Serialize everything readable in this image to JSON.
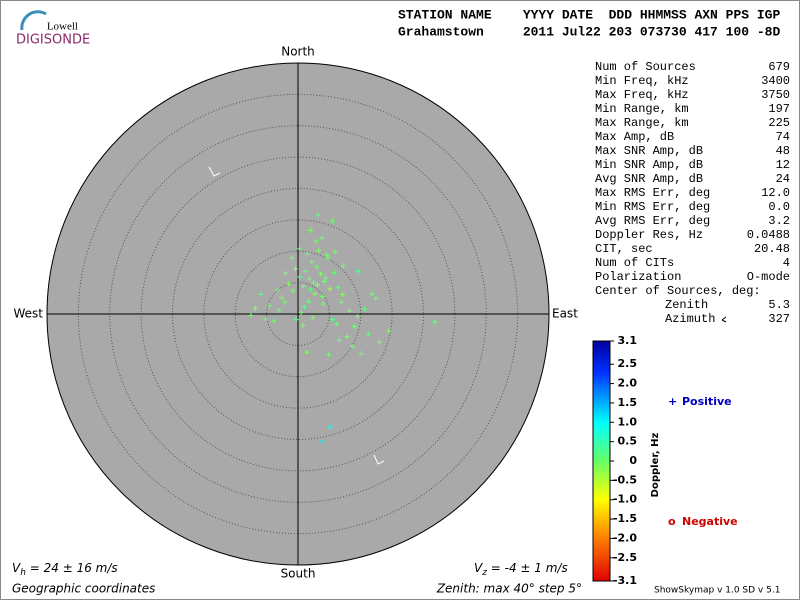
{
  "logo": {
    "top": "Lowell",
    "bottom": "DIGISONDE"
  },
  "header": {
    "line1": "STATION NAME    YYYY DATE  DDD HHMMSS AXN PPS IGP",
    "line2": "Grahamstown     2011 Jul22 203 073730 417 100 -8D"
  },
  "stats": {
    "rows": [
      {
        "label": "Num of Sources",
        "value": "679"
      },
      {
        "label": "Min Freq, kHz",
        "value": "3400"
      },
      {
        "label": "Max Freq, kHz",
        "value": "3750"
      },
      {
        "label": "Min Range, km",
        "value": "197"
      },
      {
        "label": "Max Range, km",
        "value": "225"
      },
      {
        "label": "Max Amp, dB",
        "value": "74"
      },
      {
        "label": "Max SNR Amp, dB",
        "value": "48"
      },
      {
        "label": "Min SNR Amp, dB",
        "value": "12"
      },
      {
        "label": "Avg SNR Amp, dB",
        "value": "24"
      },
      {
        "label": "Max RMS Err, deg",
        "value": "12.0"
      },
      {
        "label": "Min RMS Err, deg",
        "value": "0.0"
      },
      {
        "label": "Avg RMS Err, deg",
        "value": "3.2"
      },
      {
        "label": "Doppler Res, Hz",
        "value": "0.0488"
      },
      {
        "label": "CIT, sec",
        "value": "20.48"
      },
      {
        "label": "Num of CITs",
        "value": "4"
      },
      {
        "label": "Polarization",
        "value": "O-mode"
      }
    ],
    "center": {
      "label": "Center of Sources, deg:",
      "zenith": {
        "label": "Zenith",
        "value": "5.3"
      },
      "azimuth": {
        "label": "Azimuth",
        "value": "327"
      }
    }
  },
  "legend": {
    "positive": {
      "symbol": "+",
      "label": "Positive"
    },
    "negative": {
      "symbol": "o",
      "label": "Negative"
    }
  },
  "footer": {
    "vh": {
      "symbol": "V",
      "subscript": "h",
      "text": " = 24 ± 16 m/s"
    },
    "vz": {
      "symbol": "V",
      "subscript": "z",
      "text": " = -4 ± 1 m/s"
    },
    "coords": "Geographic coordinates",
    "zenith": "Zenith: max 40°  step 5°",
    "version": "ShowSkymap v 1.0  SD v 5.1"
  },
  "chart_data": {
    "type": "skymap",
    "directions": {
      "north": "North",
      "south": "South",
      "east": "East",
      "west": "West"
    },
    "rlim": [
      0,
      40
    ],
    "rstep": 5,
    "x": [
      2.5,
      3.1,
      1.8,
      4.2,
      3.6,
      2.0,
      0.9,
      5.1,
      4.4,
      1.2,
      3.0,
      2.7,
      3.9,
      0.3,
      -0.8,
      -1.5,
      5.8,
      6.4,
      7.1,
      2.2,
      1.5,
      4.8,
      3.3,
      2.9,
      -2.1,
      -3.0,
      -4.6,
      -6.8,
      -7.5,
      -5.2,
      -3.8,
      -2.6,
      0.5,
      1.0,
      6.9,
      8.2,
      9.5,
      10.6,
      12.4,
      14.5,
      13.0,
      11.2,
      9.0,
      7.8,
      8.6,
      5.5,
      6.2,
      4.0,
      2.4,
      1.7,
      -1.0,
      -0.4,
      0.2,
      3.8,
      4.6,
      5.9,
      9.6,
      7.2,
      5.5,
      3.2,
      2.0,
      -3.3,
      -5.9,
      -2.0,
      1.4,
      4.9,
      6.6,
      10.1,
      21.8,
      5.1,
      3.8,
      11.8,
      0.8,
      -0.3
    ],
    "y": [
      5.0,
      4.6,
      5.6,
      5.2,
      6.4,
      3.9,
      4.4,
      4.0,
      5.8,
      6.8,
      7.5,
      3.2,
      2.8,
      5.9,
      3.7,
      4.8,
      6.6,
      4.2,
      3.1,
      8.3,
      9.6,
      8.9,
      10.1,
      11.6,
      1.9,
      0.6,
      1.3,
      0.9,
      -0.2,
      -0.8,
      -1.1,
      2.6,
      0.2,
      1.1,
      1.9,
      0.5,
      -0.4,
      0.8,
      2.5,
      -2.7,
      -4.5,
      -3.2,
      -2.0,
      -3.6,
      -5.2,
      -0.9,
      -1.6,
      1.6,
      -0.6,
      2.0,
      8.9,
      7.2,
      10.4,
      12.1,
      9.4,
      9.9,
      6.8,
      7.6,
      14.8,
      15.8,
      13.3,
      3.8,
      3.1,
      6.5,
      -6.1,
      -6.5,
      -4.2,
      -6.3,
      -1.3,
      -18.0,
      -20.3,
      3.2,
      -1.8,
      -0.9
    ],
    "doppler": [
      0,
      -0.2,
      0.1,
      0,
      -0.1,
      0.2,
      0,
      -0.3,
      0,
      0.1,
      0,
      -0.2,
      0,
      0.3,
      0,
      -0.1,
      0,
      0.1,
      -0.2,
      0,
      0.2,
      0,
      -0.1,
      0,
      0,
      0.1,
      0,
      -0.2,
      0,
      0.1,
      0,
      -0.1,
      0,
      0.2,
      0,
      -0.1,
      0,
      0.1,
      0,
      -0.2,
      0,
      0.1,
      0,
      -0.1,
      0,
      0.2,
      0,
      0,
      -0.1,
      0.1,
      0,
      -0.2,
      0.1,
      0,
      0,
      -0.1,
      0.2,
      0,
      0,
      0.1,
      -0.1,
      0,
      0.2,
      0,
      -0.1,
      0,
      0.1,
      0,
      0.1,
      0.9,
      1.1,
      0,
      -0.1,
      0.2
    ],
    "colorbar": {
      "label": "Doppler, Hz",
      "lim": [
        -3.1,
        3.1
      ],
      "ticks": [
        3.1,
        2.5,
        {
          "value": 2,
          "label": "2.0"
        },
        1.5,
        {
          "value": 1,
          "label": "1.0"
        },
        0.5,
        0,
        -0.5,
        {
          "value": -1,
          "label": "-1.0"
        },
        -1.5,
        {
          "value": -2,
          "label": "-2.0"
        },
        -2.5,
        -3.1
      ]
    }
  }
}
